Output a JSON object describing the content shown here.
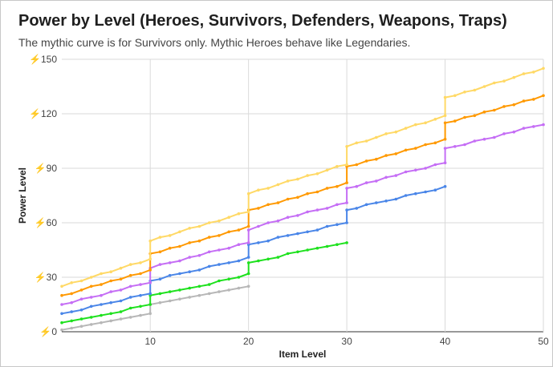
{
  "chart_data": {
    "type": "line",
    "title": "Power by Level (Heroes, Survivors, Defenders, Weapons, Traps)",
    "subtitle": "The mythic curve is for Survivors only. Mythic Heroes behave like Legendaries.",
    "xlabel": "Item Level",
    "ylabel": "Power Level",
    "xlim": [
      1,
      50
    ],
    "ylim": [
      0,
      150
    ],
    "x_ticks": [
      10,
      20,
      30,
      40,
      50
    ],
    "y_ticks": [
      {
        "value": 0,
        "label": "⚡0"
      },
      {
        "value": 30,
        "label": "⚡30"
      },
      {
        "value": 60,
        "label": "⚡60"
      },
      {
        "value": 90,
        "label": "⚡90"
      },
      {
        "value": 120,
        "label": "⚡120"
      },
      {
        "value": 150,
        "label": "⚡150"
      }
    ],
    "grid": true,
    "legend": "none",
    "series": [
      {
        "color": "#b7b7b7",
        "x": [
          1,
          2,
          3,
          4,
          5,
          6,
          7,
          8,
          9,
          10,
          10,
          11,
          12,
          13,
          14,
          15,
          16,
          17,
          18,
          19,
          20
        ],
        "y": [
          1,
          2,
          3,
          4,
          5,
          6,
          7,
          8,
          9,
          10,
          15,
          16,
          17,
          18,
          19,
          20,
          21,
          22,
          23,
          24,
          25
        ]
      },
      {
        "color": "#1ee11e",
        "x": [
          1,
          2,
          3,
          4,
          5,
          6,
          7,
          8,
          9,
          10,
          10,
          11,
          12,
          13,
          14,
          15,
          16,
          17,
          18,
          19,
          20,
          20,
          21,
          22,
          23,
          24,
          25,
          26,
          27,
          28,
          29,
          30
        ],
        "y": [
          5,
          6,
          7,
          8,
          9,
          10,
          11,
          13,
          14,
          15,
          20,
          21,
          22,
          23,
          24,
          25,
          26,
          28,
          29,
          30,
          32,
          38,
          39,
          40,
          41,
          43,
          44,
          45,
          46,
          47,
          48,
          49
        ]
      },
      {
        "color": "#4a86e8",
        "x": [
          1,
          2,
          3,
          4,
          5,
          6,
          7,
          8,
          9,
          10,
          10,
          11,
          12,
          13,
          14,
          15,
          16,
          17,
          18,
          19,
          20,
          20,
          21,
          22,
          23,
          24,
          25,
          26,
          27,
          28,
          29,
          30,
          30,
          31,
          32,
          33,
          34,
          35,
          36,
          37,
          38,
          39,
          40
        ],
        "y": [
          10,
          11,
          12,
          14,
          15,
          16,
          17,
          19,
          20,
          21,
          28,
          29,
          31,
          32,
          33,
          34,
          36,
          37,
          38,
          39,
          41,
          48,
          49,
          50,
          52,
          53,
          54,
          55,
          56,
          58,
          59,
          60,
          67,
          68,
          70,
          71,
          72,
          73,
          75,
          76,
          77,
          78,
          80
        ]
      },
      {
        "color": "#c56ef5",
        "x": [
          1,
          2,
          3,
          4,
          5,
          6,
          7,
          8,
          9,
          10,
          10,
          11,
          12,
          13,
          14,
          15,
          16,
          17,
          18,
          19,
          20,
          20,
          21,
          22,
          23,
          24,
          25,
          26,
          27,
          28,
          29,
          30,
          30,
          31,
          32,
          33,
          34,
          35,
          36,
          37,
          38,
          39,
          40,
          40,
          41,
          42,
          43,
          44,
          45,
          46,
          47,
          48,
          49,
          50
        ],
        "y": [
          15,
          16,
          18,
          19,
          20,
          22,
          23,
          25,
          26,
          27,
          35,
          37,
          38,
          39,
          41,
          42,
          44,
          45,
          46,
          48,
          49,
          56,
          58,
          60,
          61,
          63,
          64,
          66,
          67,
          68,
          70,
          71,
          79,
          80,
          82,
          83,
          85,
          86,
          88,
          89,
          90,
          92,
          93,
          101,
          102,
          103,
          105,
          106,
          107,
          109,
          110,
          112,
          113,
          114
        ]
      },
      {
        "color": "#ff9900",
        "x": [
          1,
          2,
          3,
          4,
          5,
          6,
          7,
          8,
          9,
          10,
          10,
          11,
          12,
          13,
          14,
          15,
          16,
          17,
          18,
          19,
          20,
          20,
          21,
          22,
          23,
          24,
          25,
          26,
          27,
          28,
          29,
          30,
          30,
          31,
          32,
          33,
          34,
          35,
          36,
          37,
          38,
          39,
          40,
          40,
          41,
          42,
          43,
          44,
          45,
          46,
          47,
          48,
          49,
          50
        ],
        "y": [
          20,
          21,
          23,
          25,
          26,
          28,
          29,
          31,
          32,
          34,
          43,
          44,
          46,
          47,
          49,
          50,
          52,
          53,
          55,
          56,
          58,
          67,
          68,
          70,
          71,
          73,
          74,
          76,
          77,
          79,
          80,
          82,
          91,
          92,
          94,
          95,
          97,
          98,
          100,
          101,
          103,
          104,
          106,
          115,
          116,
          118,
          119,
          121,
          122,
          124,
          125,
          127,
          128,
          130
        ]
      },
      {
        "color": "#ffd966",
        "x": [
          1,
          2,
          3,
          4,
          5,
          6,
          7,
          8,
          9,
          10,
          10,
          11,
          12,
          13,
          14,
          15,
          16,
          17,
          18,
          19,
          20,
          20,
          21,
          22,
          23,
          24,
          25,
          26,
          27,
          28,
          29,
          30,
          30,
          31,
          32,
          33,
          34,
          35,
          36,
          37,
          38,
          39,
          40,
          40,
          41,
          42,
          43,
          44,
          45,
          46,
          47,
          48,
          49,
          50
        ],
        "y": [
          25,
          27,
          28,
          30,
          32,
          33,
          35,
          37,
          38,
          40,
          50,
          52,
          53,
          55,
          57,
          58,
          60,
          61,
          63,
          65,
          66,
          76,
          78,
          79,
          81,
          83,
          84,
          86,
          87,
          89,
          91,
          92,
          102,
          104,
          105,
          107,
          109,
          110,
          112,
          114,
          115,
          117,
          119,
          129,
          130,
          132,
          133,
          135,
          137,
          138,
          140,
          142,
          143,
          145
        ]
      }
    ]
  }
}
